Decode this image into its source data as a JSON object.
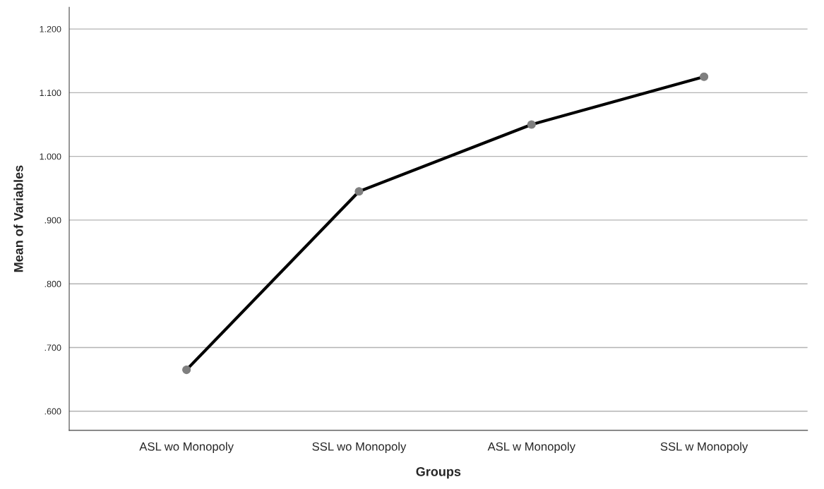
{
  "chart_data": {
    "type": "line",
    "xlabel": "Groups",
    "ylabel": "Mean of Variables",
    "categories": [
      "ASL wo Monopoly",
      "SSL wo Monopoly",
      "ASL w Monopoly",
      "SSL w Monopoly"
    ],
    "series": [
      {
        "color": "#000000",
        "values": [
          0.665,
          0.945,
          1.05,
          1.125
        ]
      }
    ],
    "ylim": [
      0.57,
      1.234
    ],
    "yticks": [
      {
        "value": 0.6,
        "label": ".600"
      },
      {
        "value": 0.7,
        "label": ".700"
      },
      {
        "value": 0.8,
        "label": ".800"
      },
      {
        "value": 0.9,
        "label": ".900"
      },
      {
        "value": 1.0,
        "label": "1.000"
      },
      {
        "value": 1.1,
        "label": "1.100"
      },
      {
        "value": 1.2,
        "label": "1.200"
      }
    ],
    "grid": "y",
    "marker": "circle",
    "line_style": "solid"
  }
}
